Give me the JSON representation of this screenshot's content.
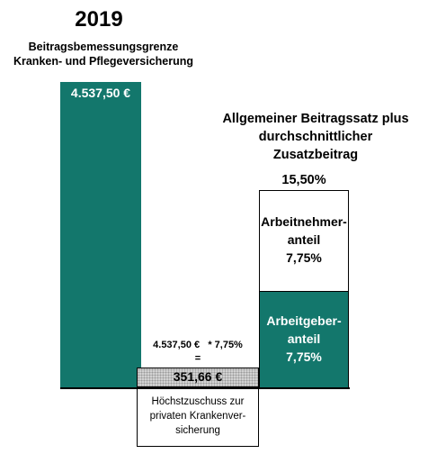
{
  "chart_data": {
    "type": "bar",
    "title": "2019",
    "subtitle": [
      "Beitragsbemessungsgrenze",
      "Kranken- und Pflegeversicherung"
    ],
    "contribution_limit": {
      "label": "4.537,50 €",
      "value": 4537.5
    },
    "rate": {
      "title": [
        "Allgemeiner Beitragssatz plus",
        "durchschnittlicher",
        "Zusatzbeitrag"
      ],
      "total_label": "15,50%",
      "total_value": 15.5,
      "segments": [
        {
          "name_lines": [
            "Arbeitnehmer-",
            "anteil"
          ],
          "label": "7,75%",
          "value": 7.75
        },
        {
          "name_lines": [
            "Arbeitgeber-",
            "anteil"
          ],
          "label": "7,75%",
          "value": 7.75
        }
      ]
    },
    "calculation": {
      "base": "4.537,50 €",
      "factor": "* 7,75%",
      "equals": "=",
      "result": "351,66 €",
      "note_lines": [
        "Höchstzuschuss zur",
        "privaten Krankenver-",
        "sicherung"
      ]
    }
  },
  "colors": {
    "accent": "#13776c",
    "result_fill": "#d2d2d2"
  }
}
